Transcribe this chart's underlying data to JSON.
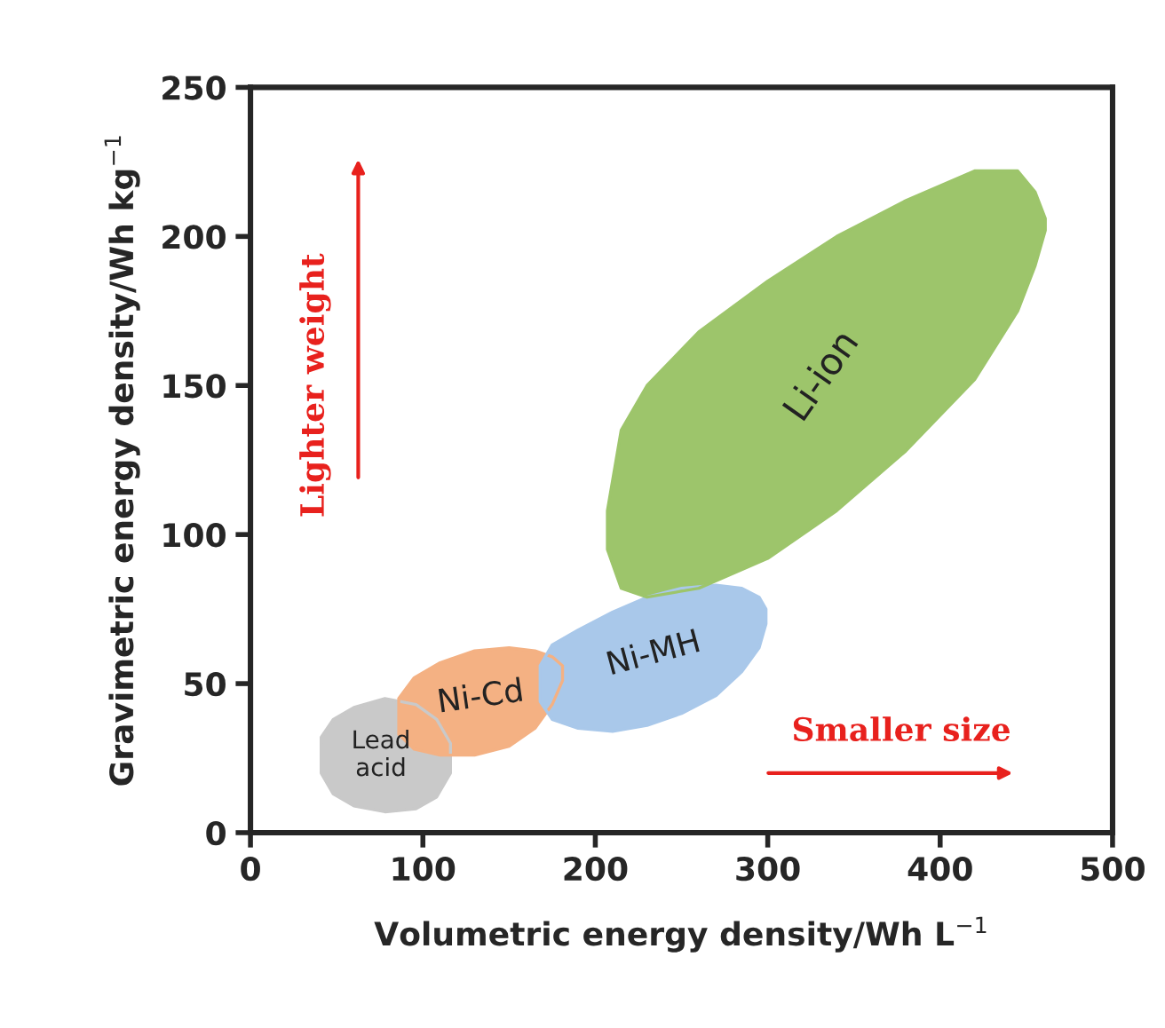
{
  "chart_data": {
    "type": "area",
    "xlabel": "Volumetric energy density/Wh L$^{−1}$",
    "ylabel": "Gravimetric energy density/Wh kg$^{−1}$",
    "xlim": [
      0,
      500
    ],
    "ylim": [
      0,
      250
    ],
    "xticks": [
      0,
      100,
      200,
      300,
      400,
      500
    ],
    "yticks": [
      0,
      50,
      100,
      150,
      200,
      250
    ],
    "grid": false,
    "legend": false,
    "marker": "none",
    "line_style": "solid",
    "series": [
      {
        "name": "Lead\nacid",
        "color": "#c9c9c9",
        "x": [
          41,
          48,
          60,
          78,
          96,
          108,
          116,
          116,
          108,
          96,
          78,
          60,
          48,
          41,
          41
        ],
        "values": [
          32,
          38,
          42,
          45,
          43,
          38,
          30,
          20,
          12,
          8,
          7,
          9,
          13,
          20,
          32
        ]
      },
      {
        "name": "Ni-Cd",
        "color": "#f4b183",
        "x": [
          86,
          95,
          110,
          130,
          150,
          165,
          175,
          181,
          181,
          175,
          165,
          150,
          130,
          110,
          95,
          86,
          86
        ],
        "values": [
          45,
          52,
          57,
          61,
          62,
          61,
          59,
          56,
          51,
          43,
          35,
          29,
          26,
          26,
          28,
          33,
          45
        ]
      },
      {
        "name": "Ni-MH",
        "color": "#a9c8ea",
        "x": [
          168,
          175,
          190,
          210,
          230,
          250,
          270,
          285,
          295,
          299,
          299,
          295,
          285,
          270,
          250,
          230,
          210,
          190,
          175,
          168,
          168
        ],
        "values": [
          56,
          63,
          68,
          74,
          79,
          82,
          83,
          82,
          79,
          75,
          70,
          62,
          54,
          46,
          40,
          36,
          34,
          35,
          38,
          44,
          56
        ]
      },
      {
        "name": "Li-ion",
        "color": "#9dc56b",
        "x": [
          207,
          215,
          230,
          260,
          300,
          340,
          380,
          420,
          445,
          455,
          461,
          461,
          455,
          445,
          420,
          380,
          340,
          300,
          260,
          230,
          215,
          207,
          207
        ],
        "values": [
          108,
          135,
          150,
          168,
          185,
          200,
          212,
          222,
          222,
          215,
          206,
          202,
          190,
          175,
          152,
          128,
          108,
          92,
          82,
          79,
          82,
          95,
          108
        ]
      }
    ],
    "annotations": [
      "Lighter weight",
      "Smaller size"
    ]
  }
}
